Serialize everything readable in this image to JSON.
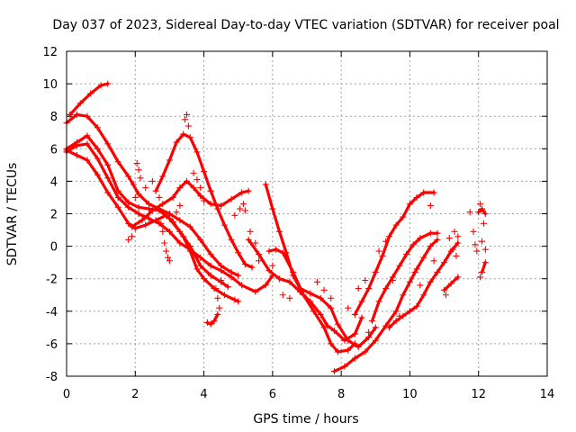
{
  "chart_data": {
    "type": "scatter",
    "title": "Day 037 of 2023, Sidereal Day-to-day VTEC variation (SDTVAR) for receiver poal",
    "xlabel": "GPS time / hours",
    "ylabel": "SDTVAR / TECUs",
    "xlim": [
      0,
      14
    ],
    "ylim": [
      -8,
      12
    ],
    "xticks": [
      0,
      2,
      4,
      6,
      8,
      10,
      12,
      14
    ],
    "yticks": [
      -8,
      -6,
      -4,
      -2,
      0,
      2,
      4,
      6,
      8,
      10,
      12
    ],
    "grid": true,
    "legend": "none",
    "series_color": "#ff0000",
    "marker": "plus",
    "series": [
      {
        "name": "trace-1",
        "points": [
          [
            0.0,
            7.6
          ],
          [
            0.3,
            8.1
          ],
          [
            0.6,
            8.0
          ],
          [
            0.9,
            7.3
          ],
          [
            1.2,
            6.3
          ],
          [
            1.5,
            5.2
          ],
          [
            1.8,
            4.3
          ],
          [
            2.1,
            3.2
          ],
          [
            2.4,
            2.6
          ],
          [
            2.7,
            2.3
          ],
          [
            3.0,
            2.0
          ],
          [
            3.3,
            1.6
          ],
          [
            3.6,
            1.2
          ],
          [
            3.9,
            0.4
          ],
          [
            4.2,
            -0.5
          ],
          [
            4.5,
            -1.2
          ],
          [
            4.8,
            -1.6
          ],
          [
            5.0,
            -1.8
          ]
        ]
      },
      {
        "name": "trace-2",
        "points": [
          [
            0.1,
            8.1
          ],
          [
            0.4,
            8.8
          ],
          [
            0.7,
            9.4
          ],
          [
            1.0,
            9.9
          ],
          [
            1.2,
            10.0
          ]
        ]
      },
      {
        "name": "trace-3",
        "points": [
          [
            0.0,
            5.8
          ],
          [
            0.3,
            6.2
          ],
          [
            0.6,
            6.3
          ],
          [
            0.9,
            5.4
          ],
          [
            1.2,
            4.2
          ],
          [
            1.5,
            3.0
          ],
          [
            1.8,
            2.4
          ],
          [
            2.1,
            2.0
          ],
          [
            2.4,
            1.7
          ],
          [
            2.7,
            1.4
          ],
          [
            3.0,
            0.9
          ],
          [
            3.3,
            0.2
          ],
          [
            3.6,
            -0.2
          ],
          [
            3.9,
            -0.7
          ],
          [
            4.2,
            -1.2
          ],
          [
            4.5,
            -1.5
          ],
          [
            4.8,
            -1.9
          ],
          [
            5.1,
            -2.4
          ],
          [
            5.5,
            -2.8
          ],
          [
            5.8,
            -2.4
          ],
          [
            6.0,
            -1.8
          ]
        ]
      },
      {
        "name": "trace-4",
        "points": [
          [
            0.0,
            6.0
          ],
          [
            0.3,
            6.4
          ],
          [
            0.6,
            6.8
          ],
          [
            0.9,
            6.0
          ],
          [
            1.2,
            5.0
          ],
          [
            1.5,
            3.4
          ],
          [
            1.8,
            2.7
          ],
          [
            2.1,
            2.4
          ],
          [
            2.4,
            2.3
          ],
          [
            2.7,
            2.2
          ],
          [
            3.0,
            1.7
          ],
          [
            3.3,
            0.9
          ],
          [
            3.6,
            0.0
          ],
          [
            3.9,
            -1.2
          ],
          [
            4.2,
            -1.8
          ],
          [
            4.5,
            -2.2
          ],
          [
            4.7,
            -2.5
          ]
        ]
      },
      {
        "name": "trace-5",
        "points": [
          [
            0.0,
            5.9
          ],
          [
            0.3,
            5.6
          ],
          [
            0.6,
            5.3
          ],
          [
            0.9,
            4.4
          ],
          [
            1.2,
            3.3
          ],
          [
            1.5,
            2.4
          ],
          [
            1.8,
            1.4
          ],
          [
            2.0,
            1.1
          ],
          [
            2.3,
            1.3
          ],
          [
            2.6,
            1.6
          ],
          [
            2.9,
            1.9
          ],
          [
            3.1,
            1.5
          ],
          [
            3.4,
            0.6
          ],
          [
            3.6,
            -0.3
          ],
          [
            3.8,
            -1.4
          ],
          [
            4.0,
            -2.0
          ],
          [
            4.3,
            -2.6
          ],
          [
            4.6,
            -3.0
          ],
          [
            4.9,
            -3.3
          ],
          [
            5.0,
            -3.4
          ]
        ]
      },
      {
        "name": "trace-6",
        "points": [
          [
            1.9,
            1.2
          ],
          [
            2.2,
            1.6
          ],
          [
            2.5,
            2.2
          ],
          [
            2.8,
            2.6
          ],
          [
            3.1,
            3.0
          ],
          [
            3.3,
            3.6
          ],
          [
            3.5,
            4.0
          ],
          [
            3.7,
            3.6
          ],
          [
            3.9,
            3.1
          ],
          [
            4.2,
            2.6
          ],
          [
            4.5,
            2.5
          ],
          [
            4.8,
            2.9
          ],
          [
            5.1,
            3.3
          ],
          [
            5.3,
            3.4
          ]
        ]
      },
      {
        "name": "trace-7",
        "points": [
          [
            2.6,
            3.4
          ],
          [
            2.8,
            4.3
          ],
          [
            3.0,
            5.3
          ],
          [
            3.2,
            6.4
          ],
          [
            3.4,
            6.9
          ],
          [
            3.6,
            6.7
          ],
          [
            3.8,
            5.8
          ],
          [
            4.0,
            4.6
          ],
          [
            4.2,
            3.4
          ],
          [
            4.4,
            2.3
          ],
          [
            4.6,
            1.3
          ],
          [
            4.8,
            0.4
          ],
          [
            5.0,
            -0.4
          ],
          [
            5.2,
            -1.1
          ],
          [
            5.4,
            -1.3
          ]
        ]
      },
      {
        "name": "trace-8",
        "points": [
          [
            5.3,
            0.4
          ],
          [
            5.6,
            -0.5
          ],
          [
            5.9,
            -1.5
          ],
          [
            6.2,
            -2.0
          ],
          [
            6.5,
            -2.2
          ],
          [
            6.8,
            -2.8
          ],
          [
            7.1,
            -3.4
          ],
          [
            7.4,
            -4.2
          ],
          [
            7.6,
            -4.9
          ],
          [
            7.8,
            -5.2
          ],
          [
            8.1,
            -5.8
          ],
          [
            8.4,
            -5.4
          ],
          [
            8.6,
            -4.4
          ]
        ]
      },
      {
        "name": "trace-9",
        "points": [
          [
            5.9,
            -0.3
          ],
          [
            6.1,
            -0.2
          ],
          [
            6.3,
            -0.4
          ],
          [
            6.6,
            -1.6
          ],
          [
            6.9,
            -3.0
          ],
          [
            7.2,
            -4.0
          ],
          [
            7.5,
            -5.0
          ],
          [
            7.7,
            -6.0
          ],
          [
            7.9,
            -6.5
          ],
          [
            8.2,
            -6.4
          ],
          [
            8.4,
            -6.0
          ]
        ]
      },
      {
        "name": "trace-10",
        "points": [
          [
            5.8,
            3.8
          ],
          [
            6.0,
            2.3
          ],
          [
            6.2,
            0.9
          ],
          [
            6.4,
            -0.4
          ],
          [
            6.6,
            -1.8
          ],
          [
            6.8,
            -2.6
          ],
          [
            7.1,
            -2.9
          ],
          [
            7.4,
            -3.2
          ],
          [
            7.7,
            -3.8
          ],
          [
            7.9,
            -4.8
          ],
          [
            8.2,
            -5.8
          ],
          [
            8.5,
            -6.2
          ],
          [
            8.8,
            -5.6
          ],
          [
            9.0,
            -5.0
          ]
        ]
      },
      {
        "name": "trace-11",
        "points": [
          [
            7.8,
            -7.7
          ],
          [
            8.1,
            -7.4
          ],
          [
            8.4,
            -6.9
          ],
          [
            8.7,
            -6.5
          ],
          [
            9.0,
            -5.8
          ],
          [
            9.3,
            -4.9
          ],
          [
            9.6,
            -4.0
          ],
          [
            9.8,
            -3.0
          ],
          [
            10.0,
            -2.2
          ],
          [
            10.2,
            -1.4
          ],
          [
            10.4,
            -0.7
          ],
          [
            10.6,
            0.0
          ],
          [
            10.8,
            0.4
          ]
        ]
      },
      {
        "name": "trace-12",
        "points": [
          [
            8.4,
            -4.2
          ],
          [
            8.6,
            -3.4
          ],
          [
            8.8,
            -2.6
          ],
          [
            9.0,
            -1.6
          ],
          [
            9.2,
            -0.6
          ],
          [
            9.4,
            0.6
          ],
          [
            9.6,
            1.3
          ],
          [
            9.8,
            1.8
          ],
          [
            10.0,
            2.6
          ],
          [
            10.2,
            3.0
          ],
          [
            10.4,
            3.3
          ],
          [
            10.7,
            3.3
          ]
        ]
      },
      {
        "name": "trace-13",
        "points": [
          [
            8.9,
            -4.6
          ],
          [
            9.1,
            -3.4
          ],
          [
            9.3,
            -2.6
          ],
          [
            9.5,
            -1.9
          ],
          [
            9.7,
            -1.2
          ],
          [
            9.9,
            -0.5
          ],
          [
            10.1,
            0.1
          ],
          [
            10.3,
            0.5
          ],
          [
            10.6,
            0.8
          ],
          [
            10.8,
            0.8
          ]
        ]
      },
      {
        "name": "trace-14",
        "points": [
          [
            9.4,
            -5.0
          ],
          [
            9.6,
            -4.6
          ],
          [
            9.8,
            -4.3
          ],
          [
            10.0,
            -4.0
          ],
          [
            10.2,
            -3.7
          ],
          [
            10.4,
            -3.0
          ],
          [
            10.6,
            -2.2
          ],
          [
            10.8,
            -1.6
          ],
          [
            11.0,
            -1.0
          ],
          [
            11.2,
            -0.3
          ],
          [
            11.4,
            0.2
          ]
        ]
      },
      {
        "name": "trace-15",
        "points": [
          [
            11.0,
            -2.7
          ],
          [
            11.2,
            -2.3
          ],
          [
            11.4,
            -1.9
          ]
        ]
      },
      {
        "name": "trace-16",
        "points": [
          [
            4.1,
            -4.7
          ],
          [
            4.2,
            -4.8
          ],
          [
            4.3,
            -4.6
          ],
          [
            4.4,
            -4.2
          ]
        ]
      },
      {
        "name": "trace-17",
        "points": [
          [
            12.0,
            2.1
          ],
          [
            12.1,
            2.3
          ],
          [
            12.2,
            2.0
          ]
        ]
      },
      {
        "name": "trace-18",
        "points": [
          [
            12.1,
            -1.6
          ],
          [
            12.2,
            -1.0
          ]
        ]
      }
    ],
    "scattered_points": [
      [
        1.8,
        0.4
      ],
      [
        1.9,
        0.6
      ],
      [
        2.05,
        5.1
      ],
      [
        2.1,
        4.7
      ],
      [
        2.15,
        4.2
      ],
      [
        1.95,
        3.8
      ],
      [
        2.0,
        3.0
      ],
      [
        2.3,
        3.6
      ],
      [
        2.5,
        4.0
      ],
      [
        2.7,
        3.0
      ],
      [
        2.75,
        1.4
      ],
      [
        2.8,
        0.9
      ],
      [
        2.85,
        0.2
      ],
      [
        2.9,
        -0.3
      ],
      [
        2.95,
        -0.7
      ],
      [
        3.0,
        -0.9
      ],
      [
        3.1,
        1.5
      ],
      [
        3.2,
        2.1
      ],
      [
        3.3,
        2.5
      ],
      [
        3.45,
        7.8
      ],
      [
        3.5,
        8.1
      ],
      [
        3.55,
        7.4
      ],
      [
        3.7,
        4.5
      ],
      [
        3.8,
        4.1
      ],
      [
        3.9,
        3.6
      ],
      [
        4.0,
        2.8
      ],
      [
        4.2,
        3.4
      ],
      [
        4.35,
        -2.6
      ],
      [
        4.4,
        -3.2
      ],
      [
        4.45,
        -3.8
      ],
      [
        4.5,
        -2.1
      ],
      [
        4.9,
        1.9
      ],
      [
        5.05,
        2.3
      ],
      [
        5.15,
        2.6
      ],
      [
        5.2,
        2.2
      ],
      [
        5.35,
        0.9
      ],
      [
        5.5,
        0.2
      ],
      [
        5.6,
        -0.9
      ],
      [
        6.0,
        -1.2
      ],
      [
        6.3,
        -3.0
      ],
      [
        6.5,
        -3.2
      ],
      [
        7.3,
        -2.2
      ],
      [
        7.5,
        -2.7
      ],
      [
        7.7,
        -3.2
      ],
      [
        8.2,
        -3.8
      ],
      [
        8.5,
        -2.6
      ],
      [
        8.7,
        -2.1
      ],
      [
        8.8,
        -5.3
      ],
      [
        9.1,
        -0.3
      ],
      [
        9.3,
        0.3
      ],
      [
        9.5,
        -2.1
      ],
      [
        9.7,
        -4.3
      ],
      [
        10.15,
        -1.6
      ],
      [
        10.3,
        -2.4
      ],
      [
        10.6,
        2.5
      ],
      [
        10.7,
        -0.9
      ],
      [
        11.05,
        -3.0
      ],
      [
        11.15,
        0.5
      ],
      [
        11.25,
        -0.2
      ],
      [
        11.3,
        0.9
      ],
      [
        11.35,
        -0.6
      ],
      [
        11.4,
        0.6
      ],
      [
        11.75,
        2.1
      ],
      [
        11.85,
        0.9
      ],
      [
        11.9,
        0.1
      ],
      [
        11.95,
        -0.3
      ],
      [
        12.05,
        2.6
      ],
      [
        12.15,
        1.4
      ],
      [
        12.1,
        0.3
      ],
      [
        12.2,
        -0.2
      ],
      [
        12.05,
        -1.9
      ]
    ]
  }
}
